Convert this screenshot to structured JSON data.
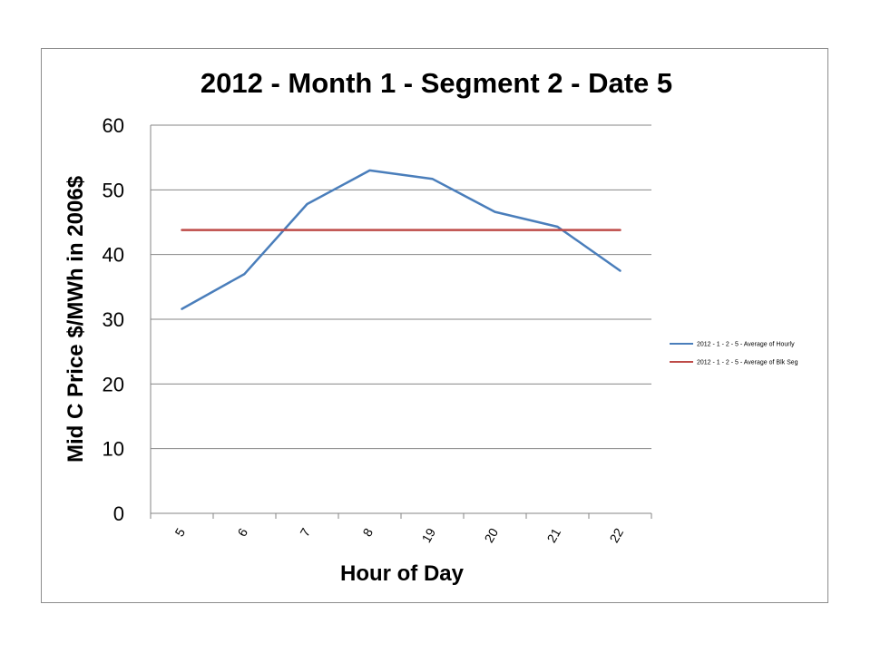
{
  "chart_data": {
    "type": "line",
    "title": "2012 - Month 1 - Segment 2 - Date 5",
    "xlabel": "Hour of Day",
    "ylabel": "Mid C Price $/MWh in 2006$",
    "categories": [
      "5",
      "6",
      "7",
      "8",
      "19",
      "20",
      "21",
      "22"
    ],
    "ylim": [
      0,
      60
    ],
    "yticks": [
      "0",
      "10",
      "20",
      "30",
      "40",
      "50",
      "60"
    ],
    "grid": true,
    "legend_position": "right",
    "series": [
      {
        "name": "2012 - 1 - 2 - 5 - Average of Hourly",
        "color": "#4a7ebb",
        "values": [
          31.6,
          37.0,
          47.8,
          53.0,
          51.7,
          46.6,
          44.3,
          37.5
        ]
      },
      {
        "name": "2012 - 1 - 2 - 5 - Average of Blk Seg",
        "color": "#be4b48",
        "values": [
          43.8,
          43.8,
          43.8,
          43.8,
          43.8,
          43.8,
          43.8,
          43.8
        ]
      }
    ]
  }
}
